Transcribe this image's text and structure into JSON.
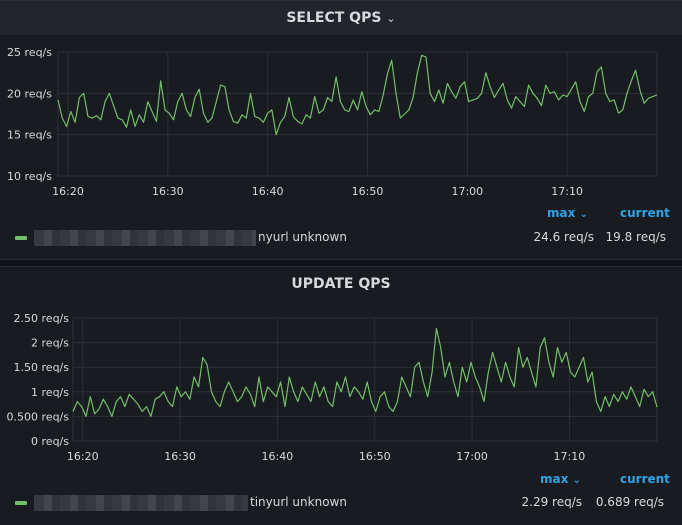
{
  "colors": {
    "series": "#73bf69",
    "grid": "#2c2f35",
    "text": "#d8d9da",
    "accent": "#33a2e5",
    "background": "#181b1f"
  },
  "header_columns": {
    "max": "max",
    "current": "current"
  },
  "chart_data": [
    {
      "type": "line",
      "title": "SELECT QPS",
      "xlabel": "",
      "ylabel": "",
      "x_ticks": [
        "16:20",
        "16:30",
        "16:40",
        "16:50",
        "17:00",
        "17:10"
      ],
      "x_range": [
        "16:19",
        "17:19"
      ],
      "y_ticks": [
        "10 req/s",
        "15 req/s",
        "20 req/s",
        "25 req/s"
      ],
      "y_tick_values": [
        10,
        15,
        20,
        25
      ],
      "ylim": [
        10,
        25
      ],
      "grid": true,
      "legend_position": "bottom",
      "series": [
        {
          "name": "nyurl unknown",
          "max": "24.6 req/s",
          "current": "19.8 req/s",
          "values": [
            19.2,
            17,
            16,
            17.8,
            16.5,
            19.5,
            20,
            17.2,
            17,
            17.3,
            16.8,
            19,
            20,
            18.5,
            17,
            16.8,
            15.9,
            18,
            16,
            17.4,
            16.5,
            19,
            17.8,
            16.6,
            21.5,
            18,
            17.6,
            16.8,
            19,
            20,
            18,
            17.2,
            19.5,
            20.5,
            17.6,
            16.5,
            17,
            19,
            21,
            20.8,
            18,
            16.6,
            16.4,
            17.4,
            17,
            20,
            17.2,
            17,
            16.5,
            17.6,
            18,
            15,
            16.5,
            17.2,
            19.5,
            17.2,
            16.6,
            16.3,
            17.4,
            17,
            19.6,
            17.6,
            18,
            19.5,
            19,
            22,
            19,
            18,
            17.8,
            19.2,
            18,
            20.2,
            18.4,
            17.4,
            18,
            17.8,
            19.8,
            22.4,
            24,
            20,
            17,
            17.5,
            18,
            19.5,
            22.5,
            24.6,
            24.4,
            20,
            19,
            20.4,
            18.8,
            21.2,
            20.2,
            19.4,
            20.8,
            21.4,
            19,
            19.2,
            19.4,
            20,
            22.5,
            20.8,
            19.5,
            20.4,
            21.2,
            19.2,
            18.2,
            19.6,
            19,
            18.4,
            21,
            20,
            19.4,
            18.5,
            21,
            20,
            20.2,
            19.2,
            19.8,
            19.6,
            20.5,
            21.4,
            19,
            17.8,
            19.6,
            20,
            22.6,
            23.2,
            20,
            19,
            19.2,
            17.6,
            18,
            20,
            21.5,
            22.8,
            20.4,
            18.8,
            19.4,
            19.6,
            19.8
          ]
        }
      ]
    },
    {
      "type": "line",
      "title": "UPDATE QPS",
      "xlabel": "",
      "ylabel": "",
      "x_ticks": [
        "16:20",
        "16:30",
        "16:40",
        "16:50",
        "17:00",
        "17:10"
      ],
      "x_range": [
        "16:19",
        "17:19"
      ],
      "y_ticks": [
        "0 req/s",
        "0.500 req/s",
        "1 req/s",
        "1.50 req/s",
        "2 req/s",
        "2.50 req/s"
      ],
      "y_tick_values": [
        0,
        0.5,
        1,
        1.5,
        2,
        2.5
      ],
      "ylim": [
        0,
        2.5
      ],
      "grid": true,
      "legend_position": "bottom",
      "series": [
        {
          "name": "tinyurl unknown",
          "max": "2.29 req/s",
          "current": "0.689 req/s",
          "values": [
            0.6,
            0.8,
            0.7,
            0.5,
            0.9,
            0.55,
            0.65,
            0.85,
            0.7,
            0.5,
            0.8,
            0.9,
            0.7,
            0.95,
            0.85,
            0.75,
            0.6,
            0.7,
            0.5,
            0.85,
            0.9,
            1.0,
            0.8,
            0.7,
            1.1,
            0.9,
            1.0,
            0.85,
            1.3,
            1.1,
            1.7,
            1.55,
            1.0,
            0.8,
            0.7,
            1.0,
            1.2,
            1.0,
            0.8,
            0.9,
            1.1,
            0.95,
            0.7,
            1.3,
            0.8,
            1.1,
            1.0,
            0.9,
            1.2,
            0.7,
            1.3,
            1.0,
            0.8,
            1.1,
            0.95,
            0.8,
            1.2,
            0.9,
            1.1,
            0.8,
            0.7,
            1.2,
            1.0,
            1.3,
            0.9,
            1.1,
            1.0,
            0.85,
            1.2,
            0.8,
            0.6,
            0.9,
            1.0,
            0.7,
            0.6,
            0.8,
            1.3,
            1.1,
            0.9,
            1.5,
            1.6,
            1.2,
            0.9,
            1.4,
            2.29,
            1.9,
            1.3,
            1.6,
            1.2,
            0.9,
            1.5,
            1.2,
            1.6,
            1.3,
            1.1,
            0.8,
            1.4,
            1.8,
            1.5,
            1.2,
            1.6,
            1.3,
            1.1,
            1.9,
            1.5,
            1.7,
            1.4,
            1.1,
            1.9,
            2.1,
            1.6,
            1.3,
            1.9,
            1.6,
            1.8,
            1.4,
            1.3,
            1.5,
            1.7,
            1.2,
            1.4,
            0.8,
            0.6,
            0.9,
            0.7,
            0.95,
            0.8,
            1.0,
            0.85,
            1.1,
            0.9,
            0.7,
            1.05,
            0.9,
            1.0,
            0.689
          ]
        }
      ]
    }
  ]
}
